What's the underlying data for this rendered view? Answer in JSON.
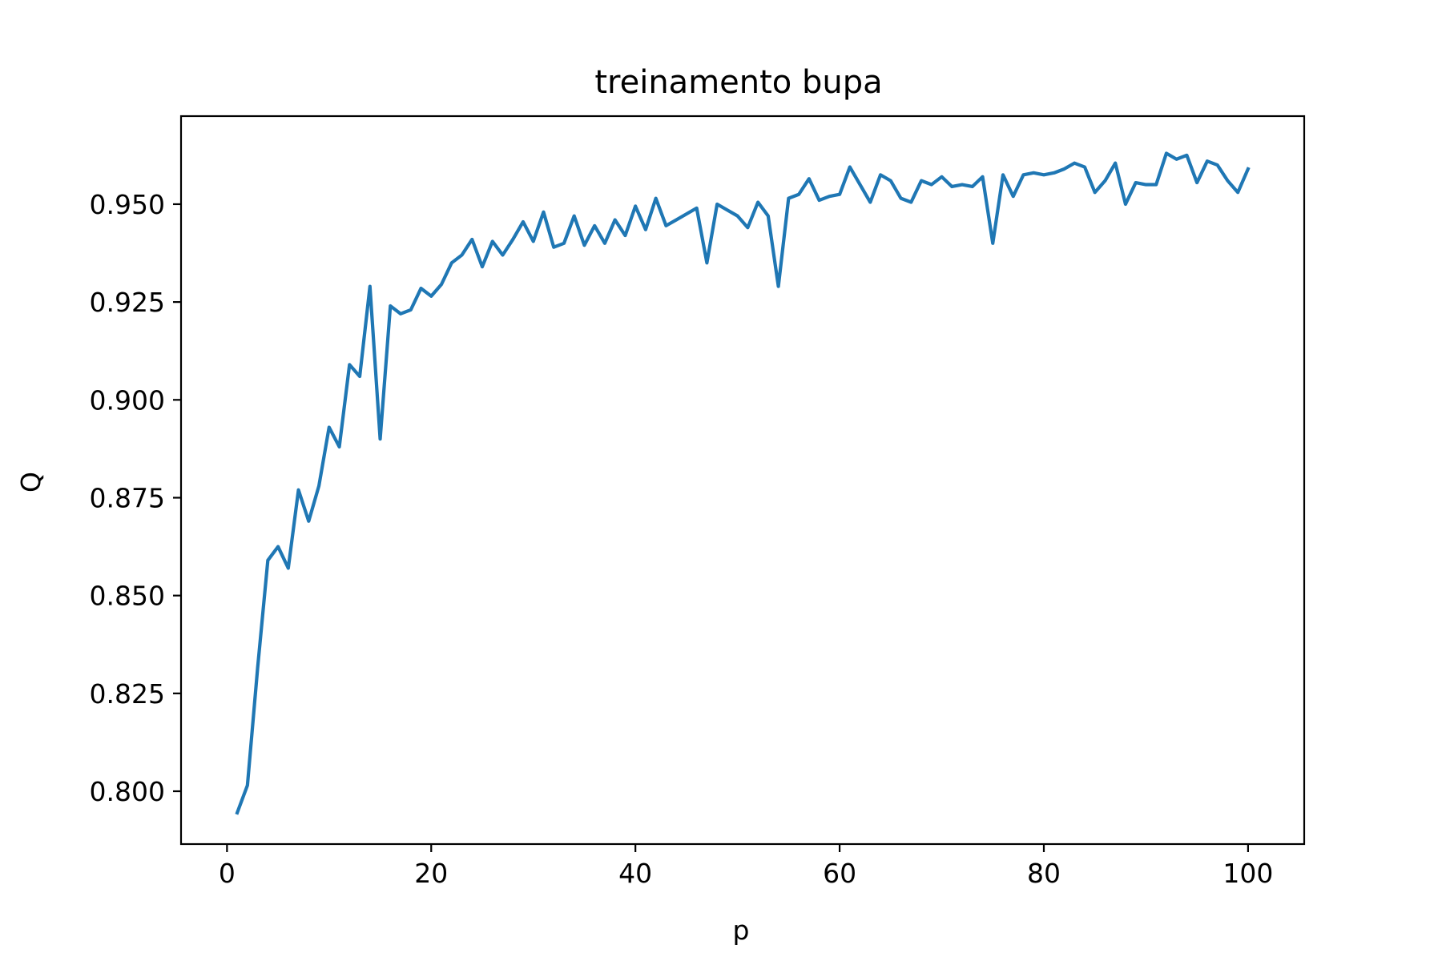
{
  "chart_data": {
    "type": "line",
    "title": "treinamento bupa",
    "xlabel": "p",
    "ylabel": "Q",
    "xlim": [
      -4.5,
      105.5
    ],
    "ylim": [
      0.7865,
      0.9725
    ],
    "xticks": [
      0,
      20,
      40,
      60,
      80,
      100
    ],
    "xtick_labels": [
      "0",
      "20",
      "40",
      "60",
      "80",
      "100"
    ],
    "yticks": [
      0.8,
      0.825,
      0.85,
      0.875,
      0.9,
      0.925,
      0.95
    ],
    "ytick_labels": [
      "0.800",
      "0.825",
      "0.850",
      "0.875",
      "0.900",
      "0.925",
      "0.950"
    ],
    "grid": false,
    "line_color": "#1f77b4",
    "series": [
      {
        "name": "Q",
        "x": [
          1,
          2,
          3,
          4,
          5,
          6,
          7,
          8,
          9,
          10,
          11,
          12,
          13,
          14,
          15,
          16,
          17,
          18,
          19,
          20,
          21,
          22,
          23,
          24,
          25,
          26,
          27,
          28,
          29,
          30,
          31,
          32,
          33,
          34,
          35,
          36,
          37,
          38,
          39,
          40,
          41,
          42,
          43,
          44,
          45,
          46,
          47,
          48,
          49,
          50,
          51,
          52,
          53,
          54,
          55,
          56,
          57,
          58,
          59,
          60,
          61,
          62,
          63,
          64,
          65,
          66,
          67,
          68,
          69,
          70,
          71,
          72,
          73,
          74,
          75,
          76,
          77,
          78,
          79,
          80,
          81,
          82,
          83,
          84,
          85,
          86,
          87,
          88,
          89,
          90,
          91,
          92,
          93,
          94,
          95,
          96,
          97,
          98,
          99,
          100
        ],
        "values": [
          0.7945,
          0.8015,
          0.8315,
          0.859,
          0.8625,
          0.857,
          0.877,
          0.869,
          0.878,
          0.893,
          0.888,
          0.909,
          0.906,
          0.929,
          0.89,
          0.924,
          0.922,
          0.923,
          0.9285,
          0.9265,
          0.9295,
          0.935,
          0.937,
          0.941,
          0.934,
          0.9405,
          0.937,
          0.941,
          0.9455,
          0.9405,
          0.948,
          0.939,
          0.94,
          0.947,
          0.9395,
          0.9445,
          0.94,
          0.946,
          0.942,
          0.9495,
          0.9435,
          0.9515,
          0.9445,
          0.946,
          0.9475,
          0.949,
          0.935,
          0.95,
          0.9485,
          0.947,
          0.944,
          0.9505,
          0.947,
          0.929,
          0.9515,
          0.9525,
          0.9565,
          0.951,
          0.952,
          0.9525,
          0.9595,
          0.955,
          0.9505,
          0.9575,
          0.956,
          0.9515,
          0.9505,
          0.956,
          0.955,
          0.957,
          0.9545,
          0.955,
          0.9545,
          0.957,
          0.94,
          0.9575,
          0.952,
          0.9575,
          0.958,
          0.9575,
          0.958,
          0.959,
          0.9605,
          0.9595,
          0.953,
          0.956,
          0.9605,
          0.95,
          0.9555,
          0.955,
          0.955,
          0.963,
          0.9615,
          0.9625,
          0.9555,
          0.961,
          0.96,
          0.956,
          0.953,
          0.959
        ]
      }
    ]
  }
}
